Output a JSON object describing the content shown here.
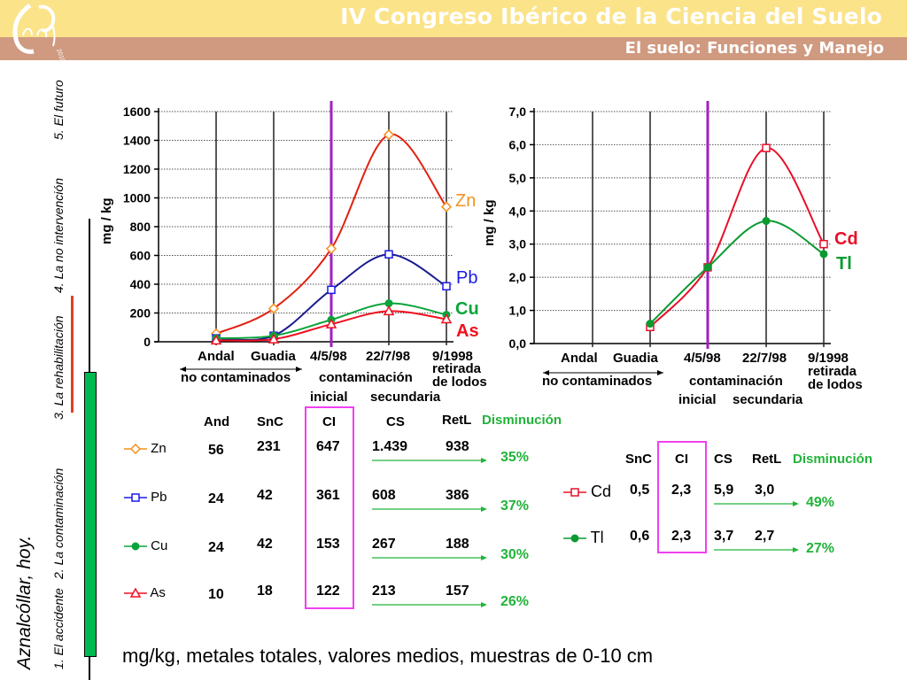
{
  "header": {
    "title": "IV Congreso Ibérico de la Ciencia del Suelo",
    "subtitle": "El suelo: Funciones y Manejo",
    "logo_year": "2010"
  },
  "sidebar": {
    "title": "Aznalcóllar, hoy.",
    "items": [
      {
        "label": "1. El accidente"
      },
      {
        "label": "2. La contaminación"
      },
      {
        "label": "3. La rehabilitación"
      },
      {
        "label": "4. La no intervención"
      },
      {
        "label": "5. El futuro"
      }
    ]
  },
  "colors": {
    "header_top": "#fbe38a",
    "header_bottom": "#cf9a80",
    "Zn": "#f5901e",
    "Zn_line": "#e02010",
    "Pb": "#1a1ae6",
    "Cu": "#0aa53a",
    "As": "#f01020",
    "Cd": "#e8102a",
    "Tl": "#0a9a30",
    "marker_line": "#a020c0",
    "highlight_box": "#f040f0",
    "green_text": "#22b33a",
    "progress_green": "#00b850",
    "progress_red": "#e04020"
  },
  "chart_data": [
    {
      "type": "line",
      "title": "",
      "ylabel": "mg / kg",
      "ylim": [
        0,
        1600
      ],
      "yticks": [
        "0",
        "200",
        "400",
        "600",
        "800",
        "1000",
        "1200",
        "1400",
        "1600"
      ],
      "grid": true,
      "categories": [
        "Andal",
        "Guadia",
        "4/5/98",
        "22/7/98",
        "9/1998"
      ],
      "category_notes": {
        "group_no_contaminados": "no contaminados",
        "contaminacion": "contaminación",
        "inicial": "inicial",
        "secundaria": "secundaria",
        "retirada": "retirada",
        "de_lodos": "de lodos"
      },
      "series": [
        {
          "name": "Zn",
          "values": [
            56,
            231,
            647,
            1439,
            938
          ]
        },
        {
          "name": "Pb",
          "values": [
            24,
            42,
            361,
            608,
            386
          ]
        },
        {
          "name": "Cu",
          "values": [
            24,
            42,
            153,
            267,
            188
          ]
        },
        {
          "name": "As",
          "values": [
            10,
            18,
            122,
            213,
            157
          ]
        }
      ],
      "marker_category": "4/5/98"
    },
    {
      "type": "line",
      "title": "",
      "ylabel": "mg / kg",
      "ylim": [
        0,
        7
      ],
      "yticks": [
        "0,0",
        "1,0",
        "2,0",
        "3,0",
        "4,0",
        "5,0",
        "6,0",
        "7,0"
      ],
      "grid": true,
      "categories": [
        "Andal",
        "Guadia",
        "4/5/98",
        "22/7/98",
        "9/1998"
      ],
      "series": [
        {
          "name": "Cd",
          "values": [
            null,
            0.5,
            2.3,
            5.9,
            3.0
          ]
        },
        {
          "name": "Tl",
          "values": [
            null,
            0.6,
            2.3,
            3.7,
            2.7
          ]
        }
      ],
      "marker_category": "4/5/98"
    }
  ],
  "table_main": {
    "headers": [
      "And",
      "SnC",
      "CI",
      "CS",
      "RetL",
      "Disminución"
    ],
    "rows": [
      {
        "metal": "Zn",
        "values": [
          "56",
          "231",
          "647",
          "1.439",
          "938"
        ],
        "decrease": "35%"
      },
      {
        "metal": "Pb",
        "values": [
          "24",
          "42",
          "361",
          "608",
          "386"
        ],
        "decrease": "37%"
      },
      {
        "metal": "Cu",
        "values": [
          "24",
          "42",
          "153",
          "267",
          "188"
        ],
        "decrease": "30%"
      },
      {
        "metal": "As",
        "values": [
          "10",
          "18",
          "122",
          "213",
          "157"
        ],
        "decrease": "26%"
      }
    ]
  },
  "table_trace": {
    "headers": [
      "SnC",
      "CI",
      "CS",
      "RetL",
      "Disminución"
    ],
    "rows": [
      {
        "metal": "Cd",
        "values": [
          "0,5",
          "2,3",
          "5,9",
          "3,0"
        ],
        "decrease": "49%"
      },
      {
        "metal": "Tl",
        "values": [
          "0,6",
          "2,3",
          "3,7",
          "2,7"
        ],
        "decrease": "27%"
      }
    ]
  },
  "footer": "mg/kg, metales totales, valores medios, muestras de 0-10 cm"
}
